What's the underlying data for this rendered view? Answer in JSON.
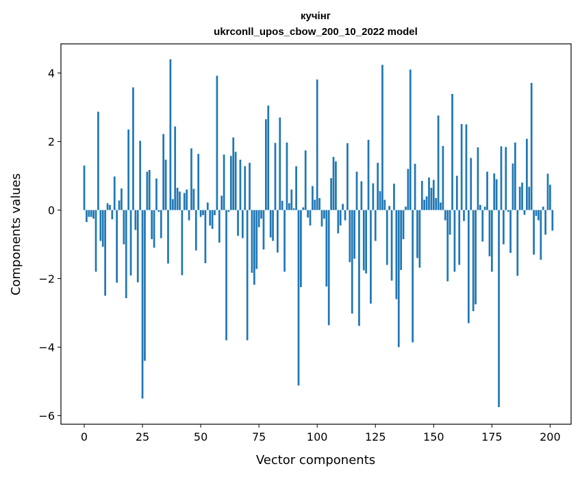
{
  "chart_data": {
    "type": "bar",
    "title": "кучінг",
    "subtitle": "ukrconll_upos_cbow_200_10_2022 model",
    "xlabel": "Vector components",
    "ylabel": "Components values",
    "xlim": [
      -10,
      209
    ],
    "ylim": [
      -6.25,
      4.85
    ],
    "x_ticks": [
      0,
      25,
      50,
      75,
      100,
      125,
      150,
      175,
      200
    ],
    "y_ticks": [
      -6,
      -4,
      -2,
      0,
      2,
      4
    ],
    "y_tick_labels": [
      "−6",
      "−4",
      "−2",
      "0",
      "2",
      "4"
    ],
    "bar_color": "#1f77b4",
    "grid": false,
    "legend": "none",
    "values": [
      1.3,
      -0.35,
      -0.2,
      -0.2,
      -0.25,
      -1.8,
      2.87,
      -0.9,
      -1.07,
      -2.5,
      0.2,
      0.15,
      -0.27,
      0.98,
      -2.12,
      0.28,
      0.63,
      -1.0,
      -2.57,
      2.35,
      -1.91,
      3.58,
      -0.58,
      -2.11,
      2.02,
      -5.5,
      -4.4,
      1.12,
      1.17,
      -0.85,
      -1.1,
      0.92,
      -0.05,
      -0.82,
      2.22,
      1.47,
      -1.56,
      4.4,
      0.32,
      2.44,
      0.65,
      0.54,
      -1.9,
      0.5,
      0.6,
      -0.3,
      1.8,
      0.62,
      -1.18,
      1.64,
      -0.2,
      -0.15,
      -1.55,
      0.22,
      -0.45,
      -0.55,
      -0.15,
      3.92,
      -0.95,
      0.42,
      1.62,
      -3.8,
      -0.05,
      1.58,
      2.12,
      1.7,
      -0.75,
      1.47,
      -0.82,
      1.28,
      -3.8,
      1.38,
      -1.83,
      -2.18,
      -1.72,
      -0.5,
      -0.25,
      -1.15,
      2.65,
      3.05,
      -0.8,
      -0.9,
      1.96,
      -1.24,
      2.7,
      0.27,
      -1.8,
      1.97,
      0.2,
      0.6,
      0.05,
      1.28,
      -5.12,
      -2.25,
      0.08,
      1.74,
      -0.22,
      -0.45,
      0.7,
      0.3,
      3.81,
      0.35,
      -0.48,
      -0.25,
      -2.23,
      -3.36,
      0.93,
      1.55,
      1.42,
      -0.68,
      -0.45,
      0.18,
      -0.3,
      1.95,
      -1.52,
      -3.02,
      -1.42,
      1.12,
      -3.38,
      0.84,
      -1.76,
      -1.85,
      2.05,
      -2.73,
      0.78,
      -0.9,
      1.38,
      0.55,
      4.24,
      0.3,
      -1.6,
      0.12,
      -2.06,
      0.77,
      -2.6,
      -4.0,
      -1.75,
      -0.85,
      0.1,
      1.2,
      4.1,
      -3.86,
      1.35,
      -1.4,
      -1.68,
      0.85,
      0.3,
      0.4,
      0.95,
      0.65,
      0.88,
      0.35,
      2.76,
      0.22,
      1.87,
      -0.3,
      -2.08,
      -0.72,
      3.39,
      -1.8,
      1.0,
      -1.6,
      2.51,
      -0.32,
      2.5,
      -3.3,
      1.52,
      -2.95,
      -2.75,
      1.83,
      0.15,
      -0.92,
      0.1,
      1.12,
      -1.35,
      -1.8,
      1.07,
      0.9,
      -5.75,
      1.86,
      -1.0,
      1.84,
      -0.05,
      -1.25,
      1.36,
      1.97,
      -1.92,
      0.68,
      0.8,
      -0.14,
      2.08,
      0.68,
      3.71,
      -1.3,
      -0.17,
      -0.3,
      -1.45,
      0.1,
      -0.72,
      1.06,
      0.74,
      -0.6
    ]
  }
}
